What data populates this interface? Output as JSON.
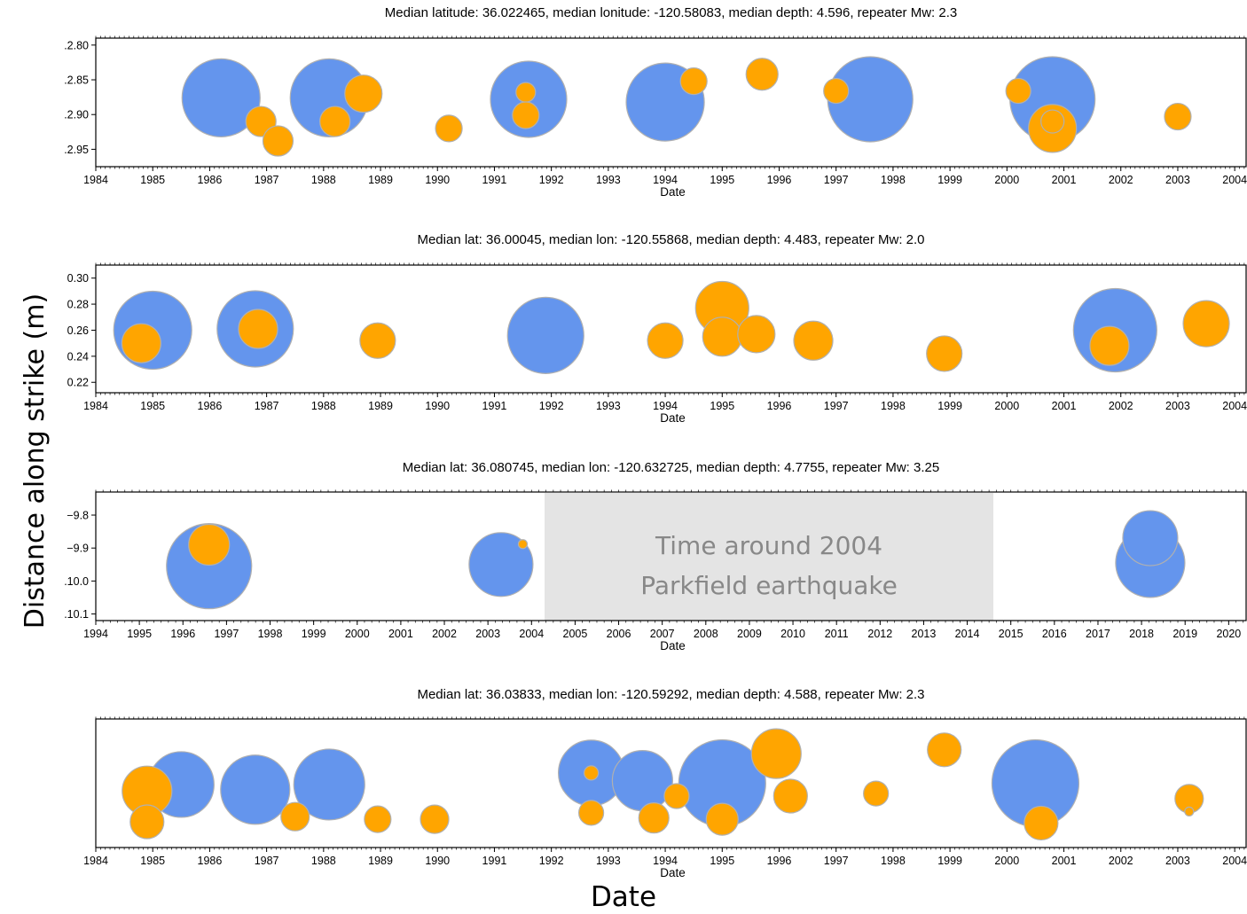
{
  "figure": {
    "ylabel": "Distance along strike (m)",
    "xlabel": "Date",
    "annotation": {
      "line1": "Time around 2004",
      "line2": "Parkfield earthquake"
    },
    "colors": {
      "blue": "#6495ED",
      "orange": "#FFA500",
      "stroke": "#b0b0b0",
      "shade": "#e4e4e4"
    }
  },
  "chart_data": [
    {
      "type": "scatter",
      "title": "Median latitude: 36.022465, median lonitude: -120.58083, median depth: 4.596, repeater Mw: 2.3",
      "xlabel": "Date",
      "xlim": [
        1984,
        2004.2
      ],
      "ylim": [
        2.975,
        2.79
      ],
      "yticks": [
        2.8,
        2.85,
        2.9,
        2.95
      ],
      "ytick_labels": [
        ".2.80",
        ".2.85",
        ".2.90",
        ".2.95"
      ],
      "xticks": [
        1984,
        1985,
        1986,
        1987,
        1988,
        1989,
        1990,
        1991,
        1992,
        1993,
        1994,
        1995,
        1996,
        1997,
        1998,
        1999,
        2000,
        2001,
        2002,
        2003,
        2004
      ],
      "series": [
        {
          "color": "blue",
          "points": [
            {
              "x": 1986.2,
              "y": 2.876,
              "r": 44
            },
            {
              "x": 1988.1,
              "y": 2.876,
              "r": 44
            },
            {
              "x": 1991.6,
              "y": 2.878,
              "r": 43
            },
            {
              "x": 1994.0,
              "y": 2.882,
              "r": 44
            },
            {
              "x": 1997.6,
              "y": 2.878,
              "r": 48
            },
            {
              "x": 2000.8,
              "y": 2.878,
              "r": 48
            }
          ]
        },
        {
          "color": "orange",
          "points": [
            {
              "x": 1986.9,
              "y": 2.91,
              "r": 17
            },
            {
              "x": 1987.2,
              "y": 2.938,
              "r": 17
            },
            {
              "x": 1988.2,
              "y": 2.91,
              "r": 17
            },
            {
              "x": 1988.7,
              "y": 2.87,
              "r": 21
            },
            {
              "x": 1990.2,
              "y": 2.92,
              "r": 15
            },
            {
              "x": 1991.55,
              "y": 2.868,
              "r": 11
            },
            {
              "x": 1991.55,
              "y": 2.901,
              "r": 15
            },
            {
              "x": 1994.5,
              "y": 2.852,
              "r": 15
            },
            {
              "x": 1995.7,
              "y": 2.842,
              "r": 18
            },
            {
              "x": 1997.0,
              "y": 2.866,
              "r": 14
            },
            {
              "x": 2000.2,
              "y": 2.866,
              "r": 14
            },
            {
              "x": 2000.8,
              "y": 2.92,
              "r": 27
            },
            {
              "x": 2000.8,
              "y": 2.91,
              "r": 13
            },
            {
              "x": 2003.0,
              "y": 2.903,
              "r": 15
            }
          ]
        }
      ]
    },
    {
      "type": "scatter",
      "title": "Median lat: 36.00045, median lon: -120.55868, median depth: 4.483, repeater Mw: 2.0",
      "xlabel": "Date",
      "xlim": [
        1984,
        2004.2
      ],
      "ylim": [
        0.212,
        0.31
      ],
      "yticks": [
        0.22,
        0.24,
        0.26,
        0.28,
        0.3
      ],
      "ytick_labels": [
        "0.22",
        "0.24",
        "0.26",
        "0.28",
        "0.30"
      ],
      "xticks": [
        1984,
        1985,
        1986,
        1987,
        1988,
        1989,
        1990,
        1991,
        1992,
        1993,
        1994,
        1995,
        1996,
        1997,
        1998,
        1999,
        2000,
        2001,
        2002,
        2003,
        2004
      ],
      "series": [
        {
          "color": "blue",
          "points": [
            {
              "x": 1985.0,
              "y": 0.26,
              "r": 44
            },
            {
              "x": 1986.8,
              "y": 0.261,
              "r": 43
            },
            {
              "x": 1991.9,
              "y": 0.256,
              "r": 43
            },
            {
              "x": 2001.9,
              "y": 0.26,
              "r": 47
            }
          ]
        },
        {
          "color": "orange",
          "points": [
            {
              "x": 1984.8,
              "y": 0.25,
              "r": 22
            },
            {
              "x": 1986.85,
              "y": 0.261,
              "r": 22
            },
            {
              "x": 1988.95,
              "y": 0.252,
              "r": 20
            },
            {
              "x": 1994.0,
              "y": 0.252,
              "r": 20
            },
            {
              "x": 1995.0,
              "y": 0.277,
              "r": 30
            },
            {
              "x": 1995.0,
              "y": 0.255,
              "r": 22
            },
            {
              "x": 1995.6,
              "y": 0.257,
              "r": 21
            },
            {
              "x": 1996.6,
              "y": 0.252,
              "r": 22
            },
            {
              "x": 1998.9,
              "y": 0.242,
              "r": 20
            },
            {
              "x": 2001.8,
              "y": 0.248,
              "r": 22
            },
            {
              "x": 2003.5,
              "y": 0.265,
              "r": 26
            }
          ]
        }
      ]
    },
    {
      "type": "scatter",
      "title": "Median lat: 36.080745, median lon: -120.632725, median depth: 4.7755, repeater Mw: 3.25",
      "xlabel": "Date",
      "xlim": [
        1994,
        2020.4
      ],
      "ylim": [
        10.12,
        9.73
      ],
      "yticks": [
        9.8,
        9.9,
        10.0,
        10.1
      ],
      "ytick_labels": [
        "−9.8",
        "−9.9",
        ".10.0",
        ".10.1"
      ],
      "xticks": [
        1994,
        1995,
        1996,
        1997,
        1998,
        1999,
        2000,
        2001,
        2002,
        2003,
        2004,
        2005,
        2006,
        2007,
        2008,
        2009,
        2010,
        2011,
        2012,
        2013,
        2014,
        2015,
        2016,
        2017,
        2018,
        2019,
        2020
      ],
      "shaded_region": [
        2004.3,
        2014.6
      ],
      "series": [
        {
          "color": "blue",
          "points": [
            {
              "x": 1996.6,
              "y": 9.955,
              "r": 48
            },
            {
              "x": 2003.3,
              "y": 9.95,
              "r": 36
            },
            {
              "x": 2018.2,
              "y": 9.945,
              "r": 39
            },
            {
              "x": 2018.2,
              "y": 9.87,
              "r": 31
            }
          ]
        },
        {
          "color": "orange",
          "points": [
            {
              "x": 1996.6,
              "y": 9.89,
              "r": 23
            },
            {
              "x": 2003.8,
              "y": 9.888,
              "r": 5
            }
          ]
        }
      ]
    },
    {
      "type": "scatter",
      "title": "Median lat: 36.03833, median lon: -120.59292, median depth: 4.588, repeater Mw: 2.3",
      "xlabel": "Date",
      "xlim": [
        1984,
        2004.2
      ],
      "ylim": [
        0,
        1
      ],
      "yticks": [],
      "ytick_labels": [],
      "xticks": [
        1984,
        1985,
        1986,
        1987,
        1988,
        1989,
        1990,
        1991,
        1992,
        1993,
        1994,
        1995,
        1996,
        1997,
        1998,
        1999,
        2000,
        2001,
        2002,
        2003,
        2004
      ],
      "series": [
        {
          "color": "blue",
          "points": [
            {
              "x": 1985.5,
              "y": 0.49,
              "r": 37
            },
            {
              "x": 1986.8,
              "y": 0.45,
              "r": 39
            },
            {
              "x": 1988.1,
              "y": 0.49,
              "r": 40
            },
            {
              "x": 1992.7,
              "y": 0.58,
              "r": 37
            },
            {
              "x": 1993.6,
              "y": 0.52,
              "r": 34
            },
            {
              "x": 1995.0,
              "y": 0.5,
              "r": 49
            },
            {
              "x": 2000.5,
              "y": 0.5,
              "r": 49
            }
          ]
        },
        {
          "color": "orange",
          "points": [
            {
              "x": 1984.9,
              "y": 0.44,
              "r": 28
            },
            {
              "x": 1984.9,
              "y": 0.2,
              "r": 19
            },
            {
              "x": 1987.5,
              "y": 0.24,
              "r": 16
            },
            {
              "x": 1988.95,
              "y": 0.22,
              "r": 15
            },
            {
              "x": 1989.95,
              "y": 0.22,
              "r": 16
            },
            {
              "x": 1992.7,
              "y": 0.58,
              "r": 8
            },
            {
              "x": 1992.7,
              "y": 0.27,
              "r": 14
            },
            {
              "x": 1993.8,
              "y": 0.23,
              "r": 17
            },
            {
              "x": 1994.2,
              "y": 0.4,
              "r": 14
            },
            {
              "x": 1995.0,
              "y": 0.22,
              "r": 18
            },
            {
              "x": 1995.95,
              "y": 0.73,
              "r": 28
            },
            {
              "x": 1996.2,
              "y": 0.4,
              "r": 19
            },
            {
              "x": 1997.7,
              "y": 0.42,
              "r": 14
            },
            {
              "x": 1998.9,
              "y": 0.76,
              "r": 19
            },
            {
              "x": 2000.6,
              "y": 0.19,
              "r": 19
            },
            {
              "x": 2003.2,
              "y": 0.38,
              "r": 16
            },
            {
              "x": 2003.2,
              "y": 0.28,
              "r": 5
            }
          ]
        }
      ]
    }
  ]
}
